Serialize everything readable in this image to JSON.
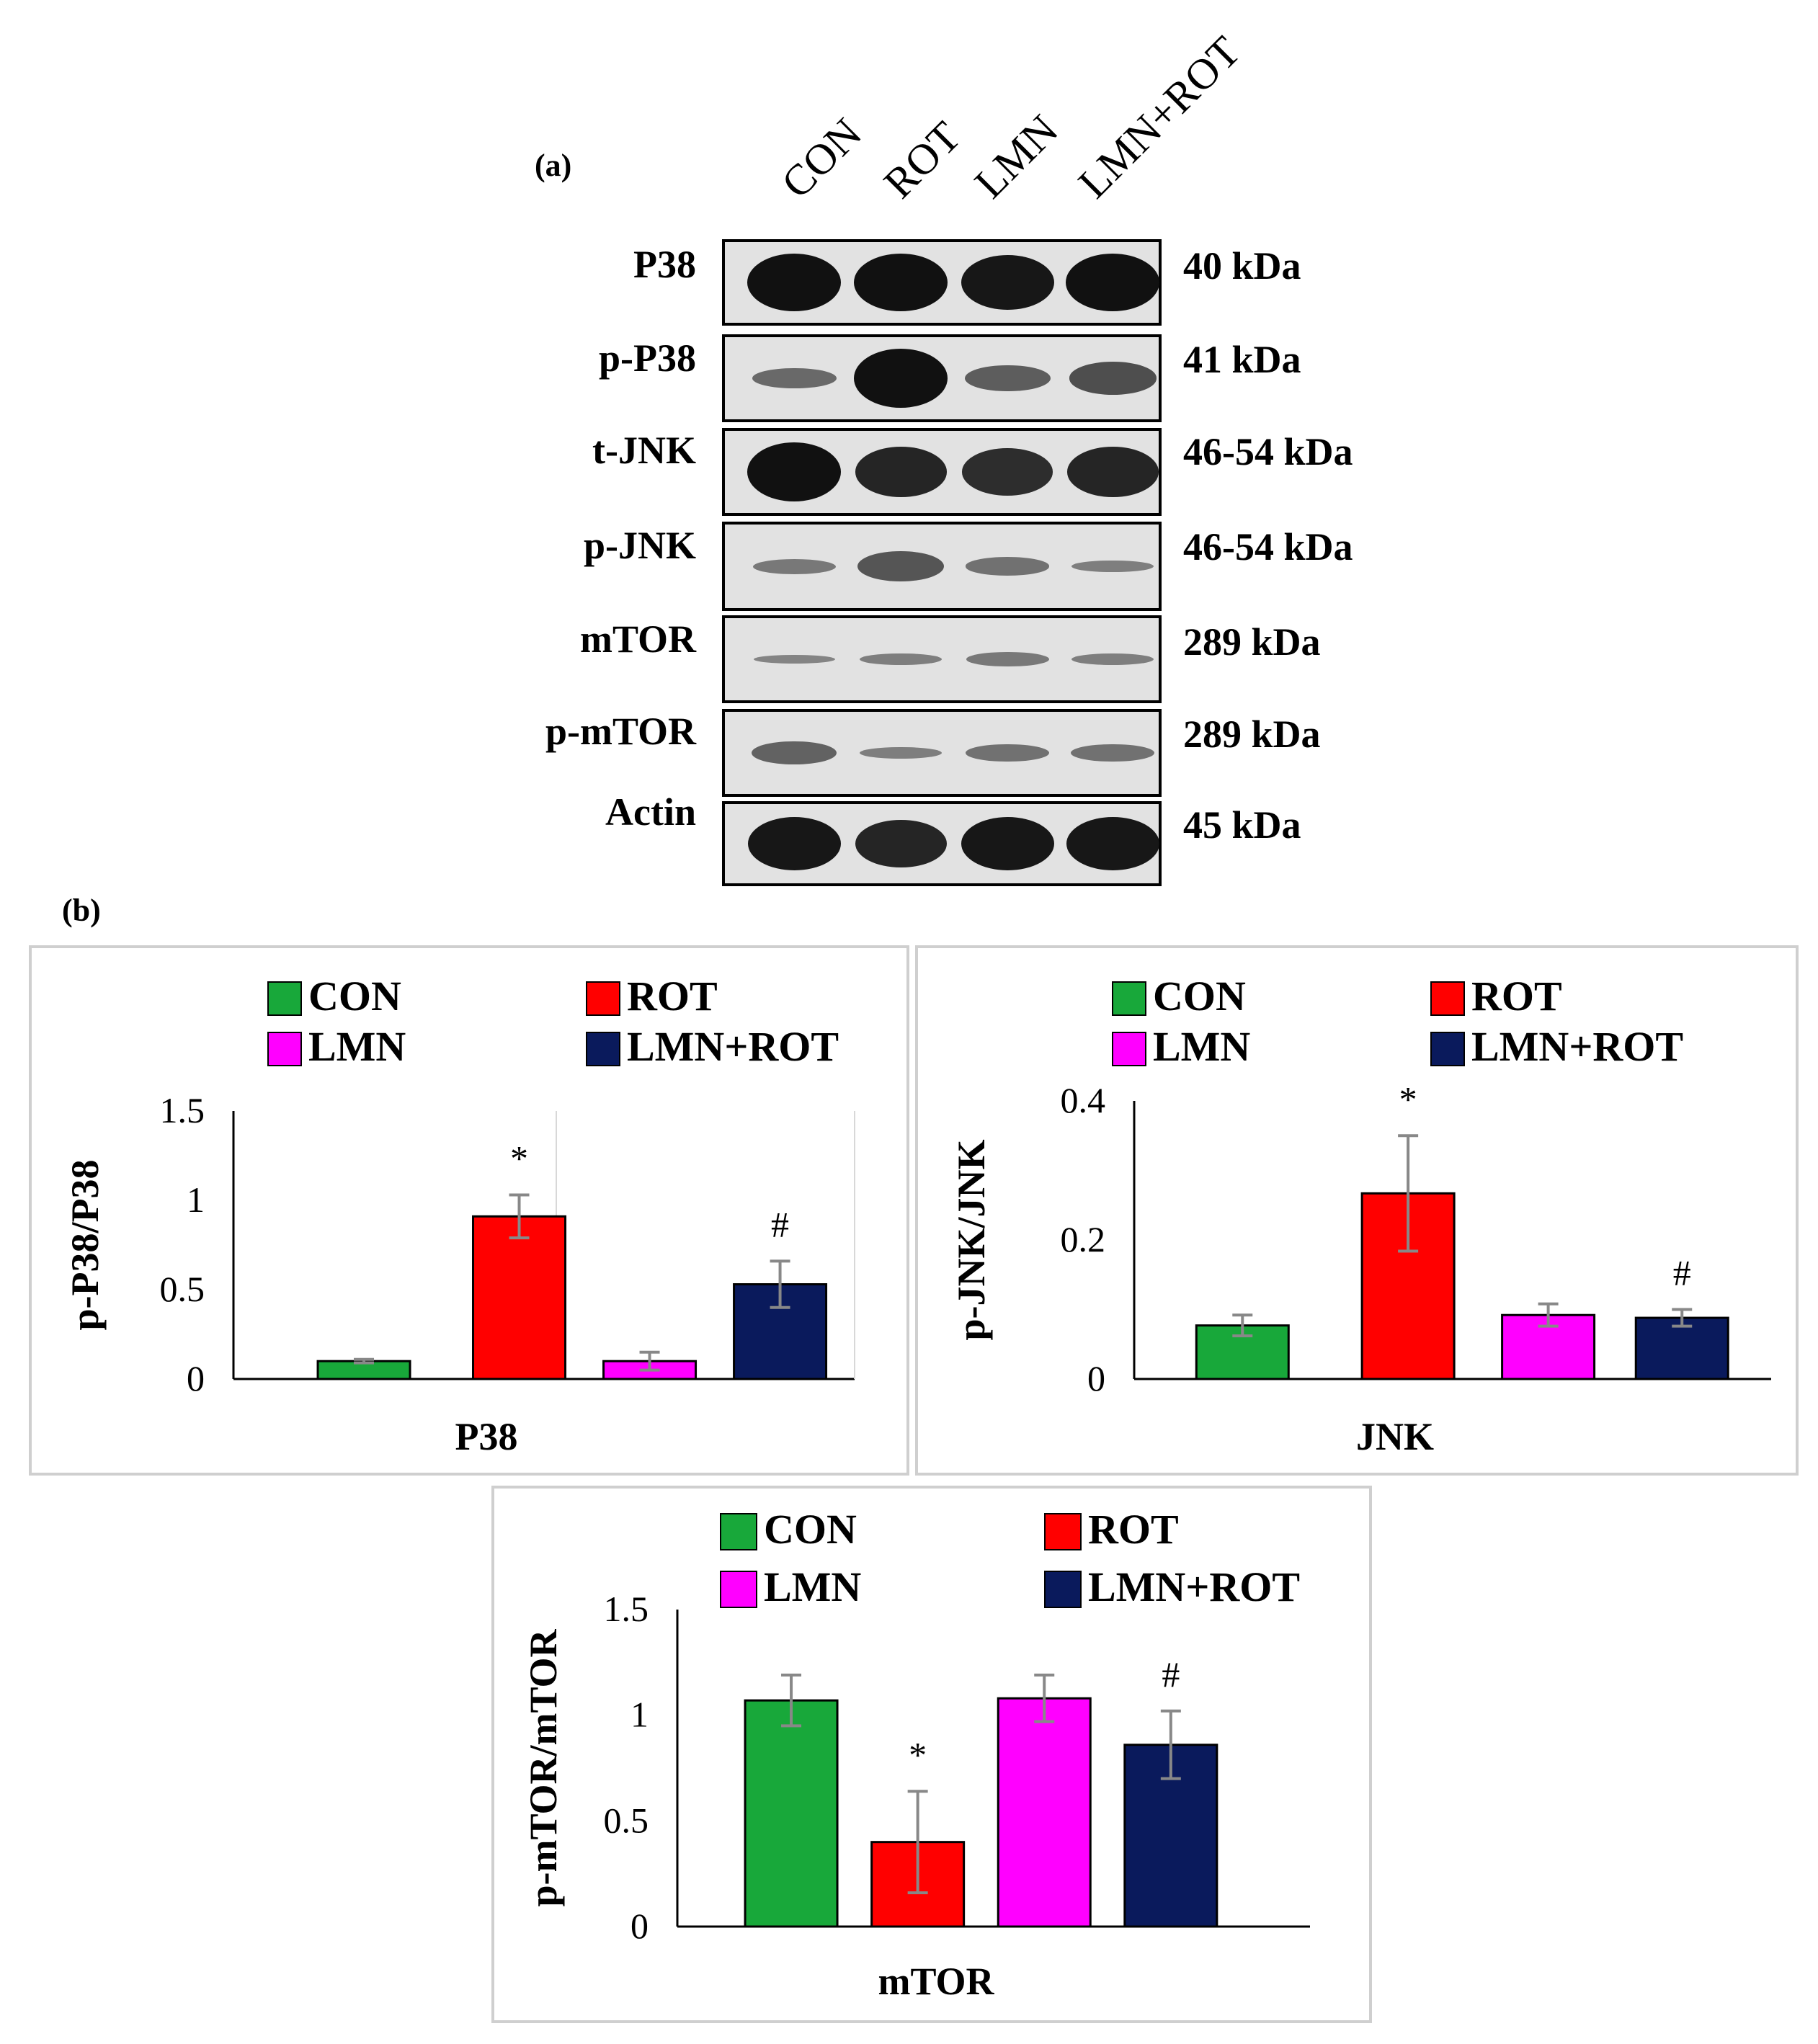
{
  "panel_a_label": "(a)",
  "panel_b_label": "(b)",
  "lanes": [
    "CON",
    "ROT",
    "LMN",
    "LMN+ROT"
  ],
  "blots": [
    {
      "name": "P38",
      "kda": "40 kDa",
      "intensity": [
        1.0,
        1.0,
        0.95,
        1.0
      ]
    },
    {
      "name": "p-P38",
      "kda": "41 kDa",
      "intensity": [
        0.35,
        1.0,
        0.45,
        0.55
      ]
    },
    {
      "name": "t-JNK",
      "kda": "46-54 kDa",
      "intensity": [
        1.0,
        0.85,
        0.8,
        0.85
      ]
    },
    {
      "name": "p-JNK",
      "kda": "46-54 kDa",
      "intensity": [
        0.25,
        0.5,
        0.3,
        0.2
      ]
    },
    {
      "name": "mTOR",
      "kda": "289 kDa",
      "intensity": [
        0.15,
        0.2,
        0.25,
        0.2
      ]
    },
    {
      "name": "p-mTOR",
      "kda": "289 kDa",
      "intensity": [
        0.4,
        0.2,
        0.3,
        0.3
      ]
    },
    {
      "name": "Actin",
      "kda": "45 kDa",
      "intensity": [
        0.95,
        0.85,
        0.95,
        0.95
      ]
    }
  ],
  "colors": {
    "CON": "#18a83a",
    "ROT": "#ff0000",
    "LMN": "#ff00ff",
    "LMN+ROT": "#0a1a5c",
    "error_bar": "#888888",
    "frame": "#cfcfcf"
  },
  "chart_data": [
    {
      "type": "bar",
      "xlabel": "P38",
      "ylabel": "p-P38/P38",
      "ylim": [
        0,
        1.5
      ],
      "yticks": [
        "0",
        "0.5",
        "1",
        "1.5"
      ],
      "legend": [
        "CON",
        "ROT",
        "LMN",
        "LMN+ROT"
      ],
      "legend_position": "top",
      "series": [
        {
          "name": "CON",
          "value": 0.1,
          "error": 0.01,
          "marker": ""
        },
        {
          "name": "ROT",
          "value": 0.91,
          "error": 0.12,
          "marker": "*"
        },
        {
          "name": "LMN",
          "value": 0.1,
          "error": 0.05,
          "marker": ""
        },
        {
          "name": "LMN+ROT",
          "value": 0.53,
          "error": 0.13,
          "marker": "#"
        }
      ]
    },
    {
      "type": "bar",
      "xlabel": "JNK",
      "ylabel": "p-JNK/JNK",
      "ylim": [
        0,
        0.4
      ],
      "yticks": [
        "0",
        "0.2",
        "0.4"
      ],
      "legend": [
        "CON",
        "ROT",
        "LMN",
        "LMN+ROT"
      ],
      "legend_position": "top",
      "series": [
        {
          "name": "CON",
          "value": 0.077,
          "error": 0.015,
          "marker": ""
        },
        {
          "name": "ROT",
          "value": 0.267,
          "error": 0.083,
          "marker": "*"
        },
        {
          "name": "LMN",
          "value": 0.092,
          "error": 0.016,
          "marker": ""
        },
        {
          "name": "LMN+ROT",
          "value": 0.088,
          "error": 0.012,
          "marker": "#"
        }
      ]
    },
    {
      "type": "bar",
      "xlabel": "mTOR",
      "ylabel": "p-mTOR/mTOR",
      "ylim": [
        0,
        1.5
      ],
      "yticks": [
        "0",
        "0.5",
        "1",
        "1.5"
      ],
      "legend": [
        "CON",
        "ROT",
        "LMN",
        "LMN+ROT"
      ],
      "legend_position": "top",
      "series": [
        {
          "name": "CON",
          "value": 1.07,
          "error": 0.12,
          "marker": ""
        },
        {
          "name": "ROT",
          "value": 0.4,
          "error": 0.24,
          "marker": "*"
        },
        {
          "name": "LMN",
          "value": 1.08,
          "error": 0.11,
          "marker": ""
        },
        {
          "name": "LMN+ROT",
          "value": 0.86,
          "error": 0.16,
          "marker": "#"
        }
      ]
    }
  ]
}
